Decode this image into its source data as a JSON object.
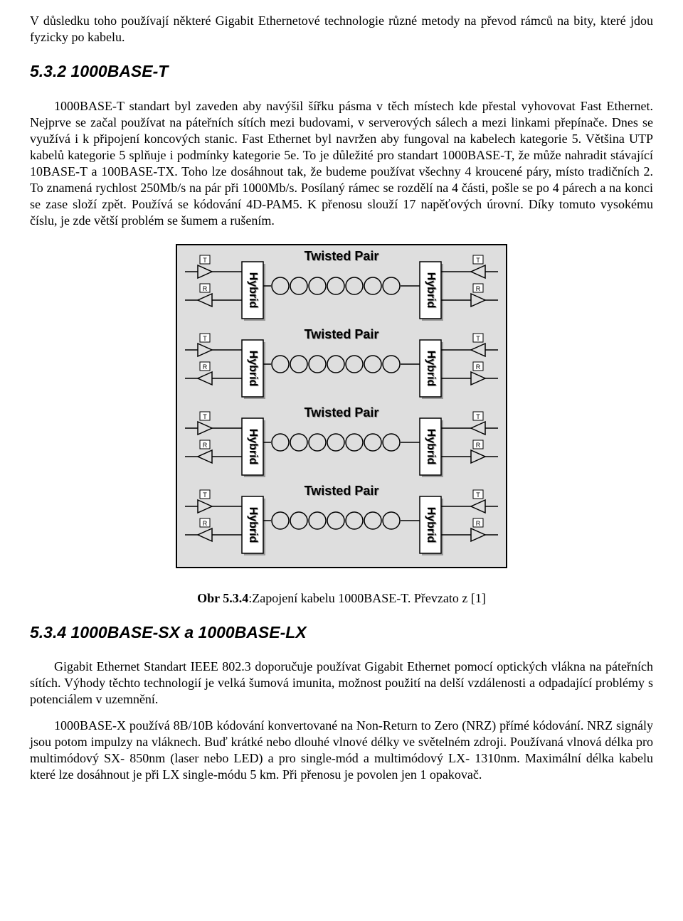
{
  "intro_para": "V důsledku toho používají některé Gigabit Ethernetové technologie různé metody na převod rámců na bity, které jdou fyzicky po kabelu.",
  "section1": {
    "heading": "5.3.2 1000BASE-T",
    "body": "1000BASE-T standart byl zaveden aby navýšil šířku pásma v těch místech kde přestal vyhovovat Fast Ethernet. Nejprve se začal používat na páteřních sítích mezi budovami, v serverových sálech a mezi linkami přepínače. Dnes se využívá i k připojení koncových stanic. Fast Ethernet byl navržen aby fungoval na kabelech kategorie 5. Většina UTP kabelů kategorie 5 splňuje i podmínky kategorie 5e. To je důležité pro standart 1000BASE-T, že může nahradit stávající 10BASE-T a 100BASE-TX. Toho lze dosáhnout tak, že budeme používat všechny 4 kroucené páry, místo tradičních 2. To znamená rychlost 250Mb/s na pár při 1000Mb/s. Posílaný rámec se rozdělí na 4 části, pošle se po 4 párech a na konci se zase složí zpět. Používá se kódování 4D-PAM5. K přenosu slouží 17 napěťových úrovní. Díky tomuto vysokému číslu, je zde větší problém se šumem a rušením."
  },
  "figure": {
    "caption_bold": "Obr 5.3.4",
    "caption_rest": ":Zapojení kabelu 1000BASE-T. Převzato z [1]",
    "row_label": "Twisted Pair",
    "hybrid_label": "Hybrid",
    "tx_label": "T",
    "rx_label": "R",
    "circles_per_row": 7,
    "rows": 4,
    "colors": {
      "panel_fill": "#dedede",
      "panel_stroke": "#000000",
      "box_fill": "#ffffff",
      "box_stroke": "#000000",
      "text": "#000000",
      "line": "#000000",
      "shadow": "#9a9a9a"
    }
  },
  "section2": {
    "heading": "5.3.4 1000BASE-SX a 1000BASE-LX",
    "body1": "Gigabit Ethernet Standart IEEE 802.3 doporučuje používat Gigabit Ethernet pomocí optických vlákna na páteřních sítích. Výhody těchto technologií je velká šumová imunita, možnost použití na delší vzdálenosti a odpadající problémy s potenciálem v uzemnění.",
    "body2": "1000BASE-X používá 8B/10B kódování konvertované na Non-Return to Zero (NRZ) přímé kódování. NRZ signály jsou potom impulzy na vláknech. Buď krátké nebo dlouhé vlnové délky ve světelném zdroji. Používaná vlnová délka pro multimódový SX- 850nm (laser nebo LED) a pro single-mód a multimódový LX- 1310nm. Maximální délka kabelu které lze dosáhnout je při LX single-módu 5 km. Při přenosu je povolen jen 1 opakovač."
  }
}
